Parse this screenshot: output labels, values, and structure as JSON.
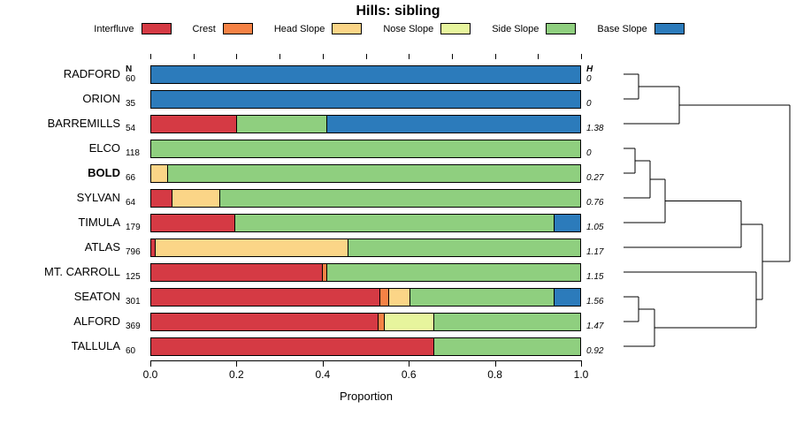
{
  "title": "Hills: sibling",
  "columns": {
    "n_header": "N",
    "h_header": "H"
  },
  "legend": {
    "items": [
      {
        "label": "Interfluve",
        "color": "#d53a44"
      },
      {
        "label": "Crest",
        "color": "#f58245"
      },
      {
        "label": "Head Slope",
        "color": "#fbd587"
      },
      {
        "label": "Nose Slope",
        "color": "#e7f59d"
      },
      {
        "label": "Side Slope",
        "color": "#8fcf7f"
      },
      {
        "label": "Base Slope",
        "color": "#2c7bbb"
      }
    ]
  },
  "x_axis": {
    "label": "Proportion",
    "ticks": [
      "0.0",
      "0.2",
      "0.4",
      "0.6",
      "0.8",
      "1.0"
    ],
    "tick_values": [
      0,
      0.2,
      0.4,
      0.6,
      0.8,
      1.0
    ],
    "minor_tick_values": [
      0,
      0.1,
      0.2,
      0.3,
      0.4,
      0.5,
      0.6,
      0.7,
      0.8,
      0.9,
      1.0
    ]
  },
  "chart_data": {
    "type": "bar",
    "orientation": "horizontal-stacked",
    "xlim": [
      0,
      1
    ],
    "categories": [
      "Interfluve",
      "Crest",
      "Head Slope",
      "Nose Slope",
      "Side Slope",
      "Base Slope"
    ],
    "colors": [
      "#d53a44",
      "#f58245",
      "#fbd587",
      "#e7f59d",
      "#8fcf7f",
      "#2c7bbb"
    ],
    "rows": [
      {
        "label": "RADFORD",
        "n": "60",
        "h": "0",
        "bold": false,
        "values": [
          0,
          0,
          0,
          0,
          0,
          1.0
        ]
      },
      {
        "label": "ORION",
        "n": "35",
        "h": "0",
        "bold": false,
        "values": [
          0,
          0,
          0,
          0,
          0,
          1.0
        ]
      },
      {
        "label": "BARREMILLS",
        "n": "54",
        "h": "1.38",
        "bold": false,
        "values": [
          0.2,
          0,
          0,
          0,
          0.21,
          0.59
        ]
      },
      {
        "label": "ELCO",
        "n": "118",
        "h": "0",
        "bold": false,
        "values": [
          0,
          0,
          0,
          0,
          1.0,
          0
        ]
      },
      {
        "label": "BOLD",
        "n": "66",
        "h": "0.27",
        "bold": true,
        "values": [
          0,
          0,
          0.04,
          0,
          0.96,
          0
        ]
      },
      {
        "label": "SYLVAN",
        "n": "64",
        "h": "0.76",
        "bold": false,
        "values": [
          0.05,
          0,
          0.11,
          0,
          0.84,
          0
        ]
      },
      {
        "label": "TIMULA",
        "n": "179",
        "h": "1.05",
        "bold": false,
        "values": [
          0.195,
          0,
          0,
          0,
          0.745,
          0.06
        ]
      },
      {
        "label": "ATLAS",
        "n": "796",
        "h": "1.17",
        "bold": false,
        "values": [
          0.01,
          0,
          0.45,
          0,
          0.54,
          0
        ]
      },
      {
        "label": "MT. CARROLL",
        "n": "125",
        "h": "1.15",
        "bold": false,
        "values": [
          0.4,
          0.01,
          0,
          0,
          0.59,
          0
        ]
      },
      {
        "label": "SEATON",
        "n": "301",
        "h": "1.56",
        "bold": false,
        "values": [
          0.535,
          0.02,
          0.05,
          0,
          0.335,
          0.06
        ]
      },
      {
        "label": "ALFORD",
        "n": "369",
        "h": "1.47",
        "bold": false,
        "values": [
          0.53,
          0.015,
          0,
          0.115,
          0.34,
          0
        ]
      },
      {
        "label": "TALLULA",
        "n": "60",
        "h": "0.92",
        "bold": false,
        "values": [
          0.66,
          0,
          0,
          0,
          0.34,
          0
        ]
      }
    ],
    "dendrogram_segments": [
      [
        12,
        24,
        29,
        24
      ],
      [
        12,
        52,
        29,
        52
      ],
      [
        29,
        24,
        29,
        52
      ],
      [
        29,
        38,
        75,
        38
      ],
      [
        12,
        80,
        75,
        80
      ],
      [
        75,
        38,
        75,
        80
      ],
      [
        75,
        59,
        200,
        59
      ],
      [
        12,
        108,
        25,
        108
      ],
      [
        12,
        136,
        25,
        136
      ],
      [
        25,
        108,
        25,
        136
      ],
      [
        25,
        122,
        42,
        122
      ],
      [
        12,
        164,
        42,
        164
      ],
      [
        42,
        122,
        42,
        164
      ],
      [
        42,
        143,
        59,
        143
      ],
      [
        12,
        192,
        59,
        192
      ],
      [
        59,
        143,
        59,
        192
      ],
      [
        59,
        167.5,
        145,
        167.5
      ],
      [
        12,
        220,
        145,
        220
      ],
      [
        145,
        167.5,
        145,
        220
      ],
      [
        145,
        194,
        169,
        194
      ],
      [
        12,
        248,
        162,
        248
      ],
      [
        12,
        276,
        29,
        276
      ],
      [
        12,
        304,
        29,
        304
      ],
      [
        29,
        276,
        29,
        304
      ],
      [
        29,
        290,
        47,
        290
      ],
      [
        12,
        332,
        47,
        332
      ],
      [
        47,
        290,
        47,
        332
      ],
      [
        47,
        311,
        162,
        311
      ],
      [
        162,
        248,
        162,
        311
      ],
      [
        162,
        279,
        169,
        279
      ],
      [
        169,
        194,
        169,
        279
      ],
      [
        169,
        236,
        200,
        236
      ],
      [
        200,
        59,
        200,
        236
      ]
    ]
  }
}
